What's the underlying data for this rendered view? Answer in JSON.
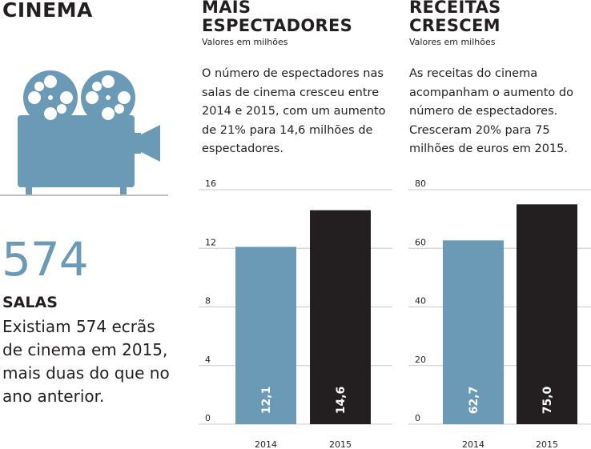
{
  "left": {
    "title": "CINEMA",
    "big_number": "574",
    "label": "SALAS",
    "text": "Existiam 574 ecrãs de cinema em 2015, mais duas do que no ano anterior."
  },
  "col1": {
    "title_line1": "MAIS",
    "title_line2": "ESPECTADORES",
    "subtitle": "Valores em milhões",
    "body": "O número de espectadores nas salas de cinema cresceu entre 2014 e 2015, com um aumento de 21% para 14,6 milhões de espectadores."
  },
  "col2": {
    "title_line1": "RECEITAS",
    "title_line2": "CRESCEM",
    "subtitle": "Valores em milhões",
    "body": "As receitas do cinema acompanham o aumento do número de espectadores. Cresceram 20% para 75 milhões de euros em 2015."
  },
  "icon": "film-projector-icon",
  "colors": {
    "accent": "#6a9ab5",
    "dark": "#231f20",
    "text": "#231f20",
    "rule": "#bfbfbf"
  },
  "chart_data": [
    {
      "type": "bar",
      "categories": [
        "2014",
        "2015"
      ],
      "values": [
        12.1,
        14.6
      ],
      "value_labels": [
        "12,1",
        "14,6"
      ],
      "bar_colors": [
        "#6a9ab5",
        "#231f20"
      ],
      "yticks": [
        "0",
        "4",
        "8",
        "12",
        "16"
      ],
      "ytick_values": [
        0,
        4,
        8,
        12,
        16
      ],
      "ylim": [
        0,
        16
      ]
    },
    {
      "type": "bar",
      "categories": [
        "2014",
        "2015"
      ],
      "values": [
        62.7,
        75.0
      ],
      "value_labels": [
        "62,7",
        "75,0"
      ],
      "bar_colors": [
        "#6a9ab5",
        "#231f20"
      ],
      "yticks": [
        "0",
        "20",
        "40",
        "60",
        "80"
      ],
      "ytick_values": [
        0,
        20,
        40,
        60,
        80
      ],
      "ylim": [
        0,
        80
      ]
    }
  ]
}
